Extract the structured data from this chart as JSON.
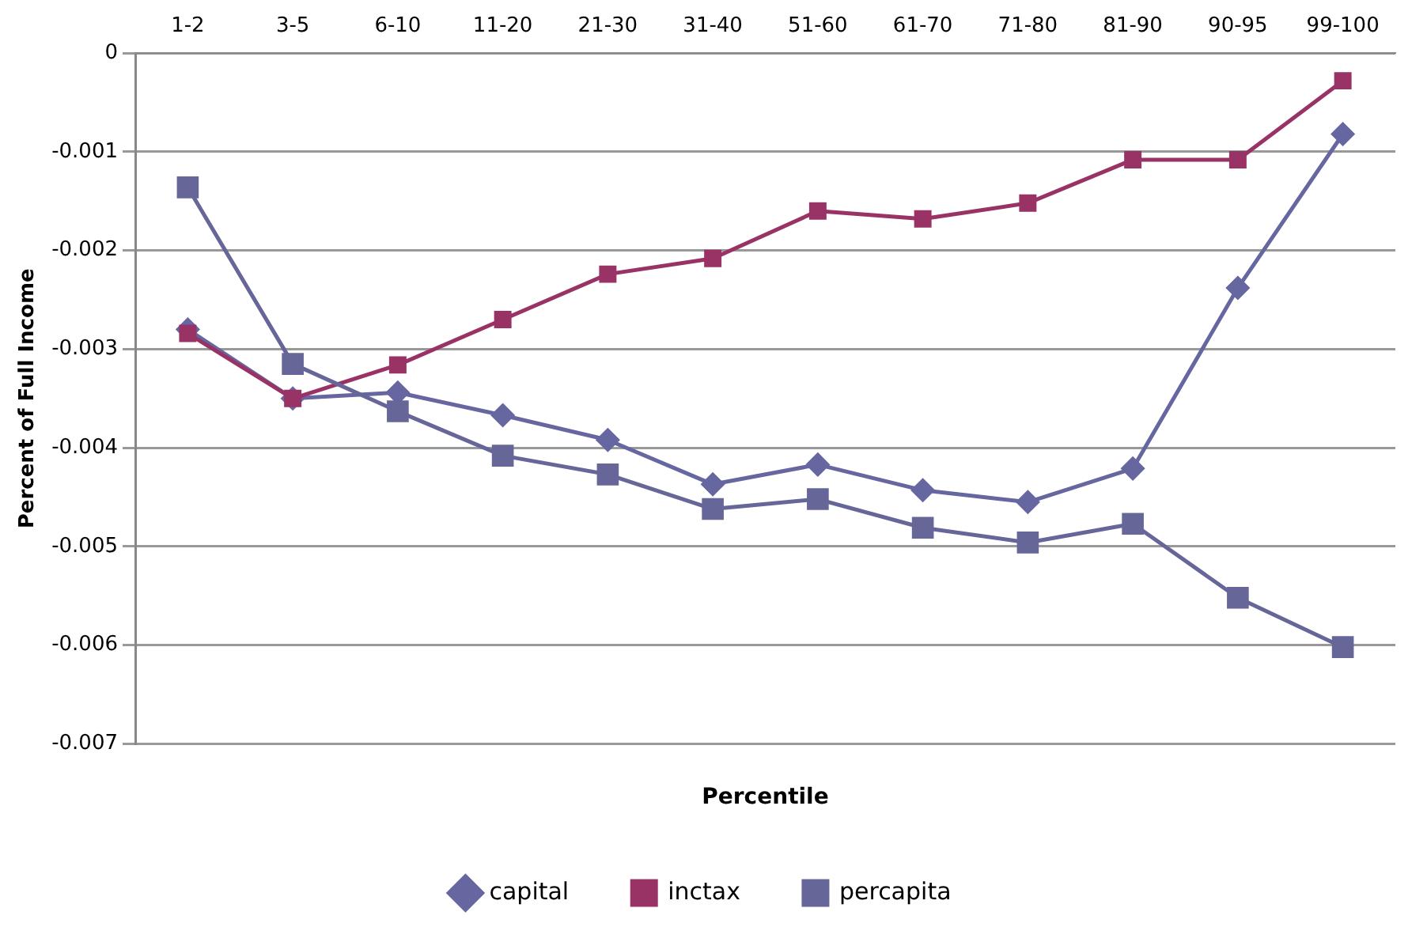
{
  "chart_data": {
    "type": "line",
    "xlabel": "Percentile",
    "ylabel": "Percent of Full Income",
    "categories": [
      "1-2",
      "3-5",
      "6-10",
      "11-20",
      "21-30",
      "31-40",
      "51-60",
      "61-70",
      "71-80",
      "81-90",
      "90-95",
      "99-100"
    ],
    "series": [
      {
        "name": "capital",
        "color": "#6666a0",
        "marker": "diamond",
        "values": [
          -0.0028,
          -0.0035,
          -0.00344,
          -0.00367,
          -0.00392,
          -0.00437,
          -0.00417,
          -0.00443,
          -0.00455,
          -0.00421,
          -0.00238,
          -0.00082
        ]
      },
      {
        "name": "inctax",
        "color": "#993366",
        "marker": "square",
        "values": [
          -0.00284,
          -0.0035,
          -0.00316,
          -0.0027,
          -0.00224,
          -0.00208,
          -0.0016,
          -0.00168,
          -0.00152,
          -0.00108,
          -0.00108,
          -0.00028
        ]
      },
      {
        "name": "percapita",
        "color": "#666699",
        "marker": "square",
        "values": [
          -0.00136,
          -0.00315,
          -0.00363,
          -0.00408,
          -0.00427,
          -0.00462,
          -0.00452,
          -0.00481,
          -0.00496,
          -0.00477,
          -0.00552,
          -0.00602
        ]
      }
    ],
    "ylim": [
      -0.007,
      0
    ],
    "yticks": [
      -0.007,
      -0.006,
      -0.005,
      -0.004,
      -0.003,
      -0.002,
      -0.001,
      0
    ],
    "grid": "y",
    "legend": "bottom"
  }
}
